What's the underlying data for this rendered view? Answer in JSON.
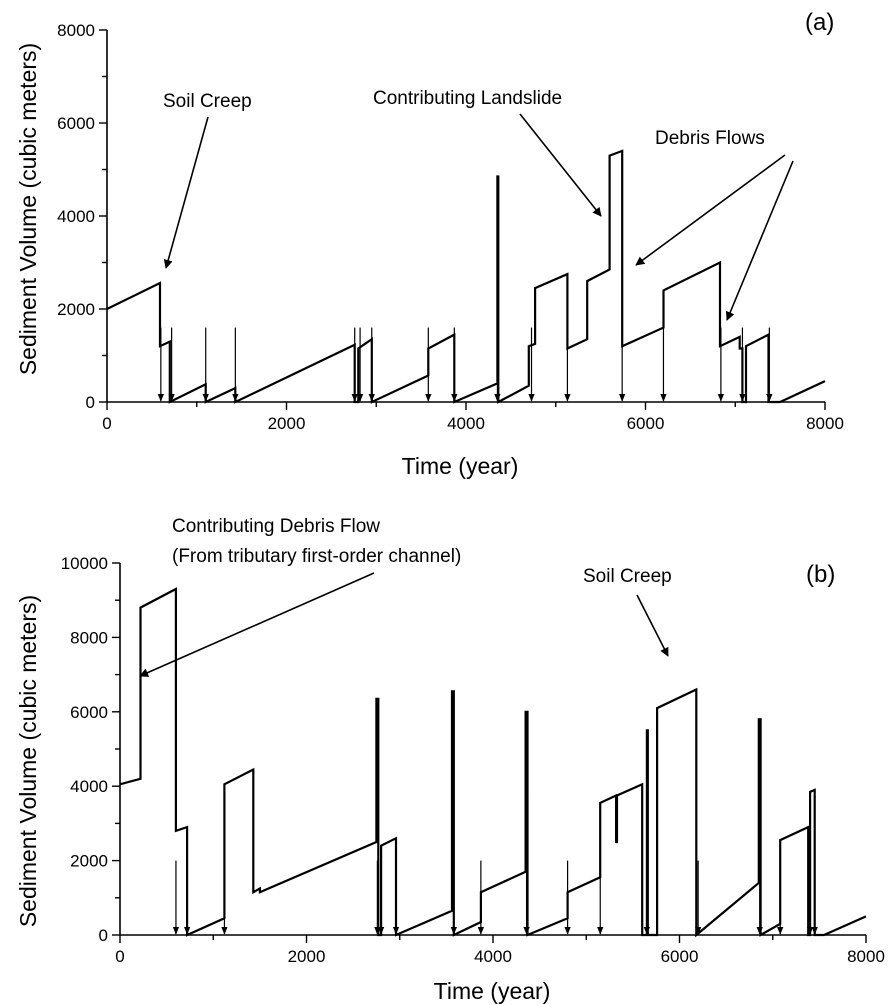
{
  "chart_data": [
    {
      "type": "line",
      "panel_label": "(a)",
      "xlabel": "Time (year)",
      "ylabel": "Sediment Volume (cubic meters)",
      "xlim": [
        0,
        8000
      ],
      "ylim": [
        0,
        8000
      ],
      "xticks": [
        0,
        2000,
        4000,
        6000,
        8000
      ],
      "yticks": [
        0,
        2000,
        4000,
        6000,
        8000
      ],
      "series": [
        {
          "points": [
            [
              0,
              2000
            ],
            [
              590,
              2560
            ],
            [
              590,
              1200
            ],
            [
              700,
              1300
            ],
            [
              700,
              0
            ],
            [
              1100,
              380
            ],
            [
              1100,
              0
            ],
            [
              1430,
              300
            ],
            [
              1430,
              0
            ],
            [
              2760,
              1230
            ],
            [
              2760,
              0
            ],
            [
              2800,
              0
            ],
            [
              2800,
              1150
            ],
            [
              2950,
              1350
            ],
            [
              2950,
              0
            ],
            [
              3580,
              570
            ],
            [
              3580,
              1150
            ],
            [
              3870,
              1450
            ],
            [
              3870,
              0
            ],
            [
              4350,
              400
            ],
            [
              4350,
              4850
            ],
            [
              4360,
              4850
            ],
            [
              4360,
              0
            ],
            [
              4700,
              350
            ],
            [
              4700,
              1200
            ],
            [
              4770,
              1250
            ],
            [
              4770,
              2450
            ],
            [
              5130,
              2750
            ],
            [
              5130,
              1150
            ],
            [
              5350,
              1350
            ],
            [
              5350,
              2600
            ],
            [
              5600,
              2850
            ],
            [
              5600,
              5300
            ],
            [
              5740,
              5400
            ],
            [
              5740,
              1200
            ],
            [
              6200,
              1600
            ],
            [
              6200,
              2400
            ],
            [
              6830,
              3000
            ],
            [
              6830,
              1200
            ],
            [
              7050,
              1400
            ],
            [
              7050,
              1150
            ],
            [
              7080,
              1150
            ],
            [
              7080,
              0
            ],
            [
              7120,
              0
            ],
            [
              7120,
              1200
            ],
            [
              7370,
              1450
            ],
            [
              7370,
              0
            ],
            [
              7500,
              0
            ],
            [
              8000,
              450
            ]
          ]
        }
      ],
      "event_years": [
        600,
        720,
        1100,
        1430,
        2760,
        2820,
        2950,
        3580,
        3870,
        4350,
        4730,
        5130,
        5740,
        6200,
        6840,
        7080,
        7380
      ],
      "annotations": [
        {
          "text": "Soil Creep"
        },
        {
          "text": "Contributing Landslide"
        },
        {
          "text": "Debris Flows"
        }
      ]
    },
    {
      "type": "line",
      "panel_label": "(b)",
      "xlabel": "Time (year)",
      "ylabel": "Sediment Volume (cubic meters)",
      "xlim": [
        0,
        8000
      ],
      "ylim": [
        0,
        10000
      ],
      "xticks": [
        0,
        2000,
        4000,
        6000,
        8000
      ],
      "yticks": [
        0,
        2000,
        4000,
        6000,
        8000,
        10000
      ],
      "series": [
        {
          "points": [
            [
              0,
              4050
            ],
            [
              220,
              4200
            ],
            [
              220,
              8800
            ],
            [
              600,
              9300
            ],
            [
              600,
              2800
            ],
            [
              720,
              2900
            ],
            [
              720,
              0
            ],
            [
              1120,
              450
            ],
            [
              1120,
              4050
            ],
            [
              1430,
              4450
            ],
            [
              1430,
              1150
            ],
            [
              1500,
              1250
            ],
            [
              1500,
              1150
            ],
            [
              2750,
              2500
            ],
            [
              2750,
              6350
            ],
            [
              2770,
              6350
            ],
            [
              2770,
              0
            ],
            [
              2800,
              0
            ],
            [
              2800,
              2400
            ],
            [
              2960,
              2600
            ],
            [
              2960,
              0
            ],
            [
              3560,
              650
            ],
            [
              3560,
              6550
            ],
            [
              3580,
              6550
            ],
            [
              3580,
              0
            ],
            [
              3870,
              350
            ],
            [
              3870,
              1150
            ],
            [
              4350,
              1700
            ],
            [
              4350,
              6000
            ],
            [
              4370,
              6000
            ],
            [
              4370,
              0
            ],
            [
              4800,
              450
            ],
            [
              4800,
              1150
            ],
            [
              5150,
              1550
            ],
            [
              5150,
              3550
            ],
            [
              5320,
              3750
            ],
            [
              5320,
              2500
            ],
            [
              5330,
              2500
            ],
            [
              5330,
              3750
            ],
            [
              5600,
              4050
            ],
            [
              5600,
              0
            ],
            [
              5650,
              0
            ],
            [
              5650,
              5500
            ],
            [
              5660,
              5500
            ],
            [
              5660,
              0
            ],
            [
              5760,
              0
            ],
            [
              5760,
              6100
            ],
            [
              6180,
              6600
            ],
            [
              6180,
              0
            ],
            [
              6850,
              1400
            ],
            [
              6850,
              5800
            ],
            [
              6870,
              5800
            ],
            [
              6870,
              0
            ],
            [
              7080,
              300
            ],
            [
              7080,
              2550
            ],
            [
              7380,
              2900
            ],
            [
              7380,
              0
            ],
            [
              7400,
              0
            ],
            [
              7400,
              3850
            ],
            [
              7450,
              3900
            ],
            [
              7450,
              0
            ],
            [
              7550,
              0
            ],
            [
              8000,
              500
            ]
          ]
        }
      ],
      "event_years": [
        600,
        720,
        1120,
        2760,
        2800,
        2960,
        3580,
        3870,
        4360,
        4800,
        5150,
        5650,
        6200,
        6860,
        7080,
        7400,
        7450
      ],
      "annotations": [
        {
          "text": "Contributing Debris Flow"
        },
        {
          "text": "(From tributary first-order channel)"
        },
        {
          "text": "Soil Creep"
        }
      ]
    }
  ]
}
